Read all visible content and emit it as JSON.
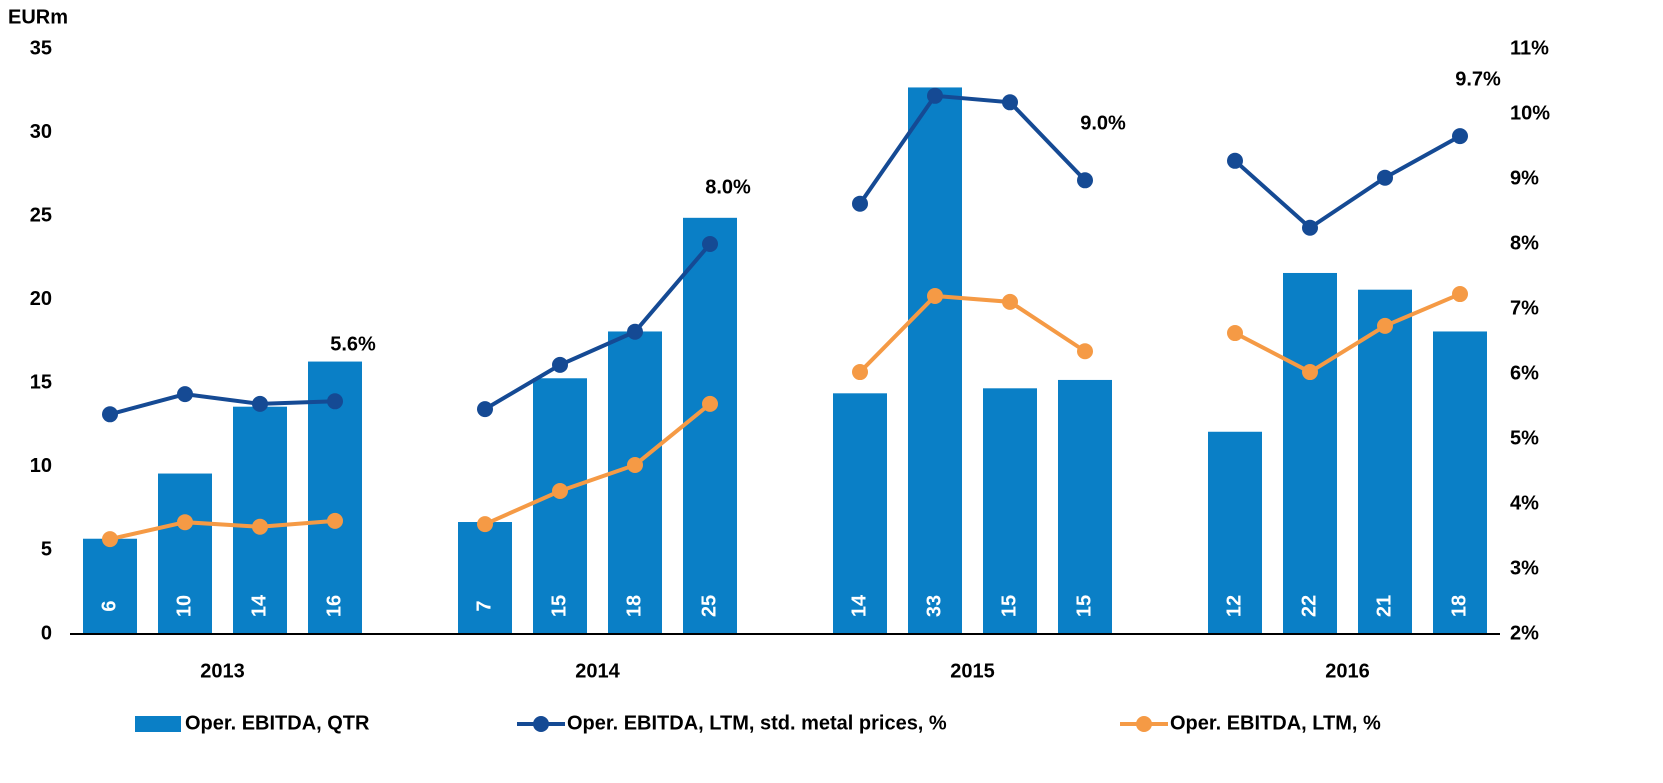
{
  "chart_data": {
    "type": "bar",
    "y_axis_label": "EURm",
    "categories": [
      null,
      null,
      null,
      null,
      null,
      null,
      null,
      null,
      null,
      null,
      null,
      null,
      null,
      null,
      null,
      null,
      null,
      null,
      null
    ],
    "year_labels": [
      "2013",
      "2014",
      "2015",
      "2016"
    ],
    "ylim": [
      0,
      35
    ],
    "yticks": [
      0,
      5,
      10,
      15,
      20,
      25,
      30,
      35
    ],
    "y2lim": [
      2,
      11
    ],
    "y2ticks": [
      {
        "value": 2,
        "label": "2%"
      },
      {
        "value": 3,
        "label": "3%"
      },
      {
        "value": 4,
        "label": "4%"
      },
      {
        "value": 5,
        "label": "5%"
      },
      {
        "value": 6,
        "label": "6%"
      },
      {
        "value": 7,
        "label": "7%"
      },
      {
        "value": 8,
        "label": "8%"
      },
      {
        "value": 9,
        "label": "9%"
      },
      {
        "value": 10,
        "label": "10%"
      },
      {
        "value": 11,
        "label": "11%"
      }
    ],
    "series": [
      {
        "name": "Oper. EBITDA, QTR",
        "type": "bar",
        "color": "#0a7fc6",
        "values": [
          5.7,
          9.6,
          13.6,
          16.3,
          null,
          6.7,
          15.3,
          18.1,
          24.9,
          null,
          14.4,
          32.7,
          14.7,
          15.2,
          null,
          12.1,
          21.6,
          20.6,
          18.1
        ],
        "value_labels": [
          "6",
          "10",
          "14",
          "16",
          null,
          "7",
          "15",
          "18",
          "25",
          null,
          "14",
          "33",
          "15",
          "15",
          null,
          "12",
          "22",
          "21",
          "18"
        ]
      },
      {
        "name": "Oper. EBITDA, LTM, std. metal prices, %",
        "type": "line",
        "axis": "y2",
        "color": "#154a94",
        "values": [
          5.38,
          5.69,
          5.54,
          5.58,
          null,
          5.46,
          6.14,
          6.65,
          8.0,
          null,
          8.62,
          10.28,
          10.18,
          8.98,
          null,
          9.28,
          8.25,
          9.02,
          9.66
        ],
        "value_labels": [
          null,
          null,
          null,
          "5.6%",
          null,
          null,
          null,
          null,
          "8.0%",
          null,
          null,
          null,
          null,
          "9.0%",
          null,
          null,
          null,
          null,
          "9.7%"
        ]
      },
      {
        "name": "Oper. EBITDA, LTM, %",
        "type": "line",
        "axis": "y2",
        "color": "#f59a45",
        "values": [
          3.46,
          3.72,
          3.65,
          3.74,
          null,
          3.69,
          4.2,
          4.6,
          5.54,
          null,
          6.03,
          7.2,
          7.11,
          6.35,
          null,
          6.63,
          6.03,
          6.74,
          7.23
        ]
      }
    ]
  }
}
